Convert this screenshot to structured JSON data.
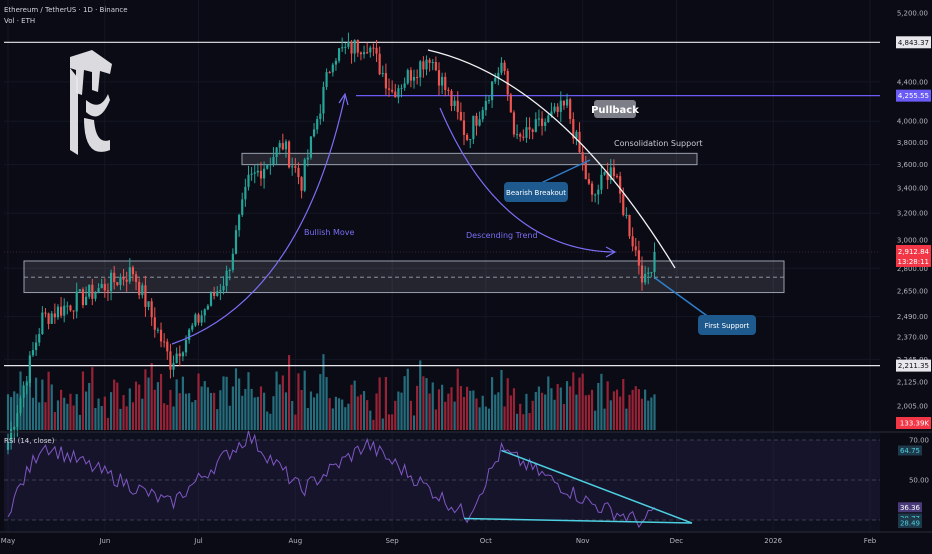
{
  "header": {
    "symbol": "Ethereum / TetherUS · 1D · Binance",
    "volume_label": "Vol · ETH",
    "rsi_label": "RSI (14, close)"
  },
  "colors": {
    "background": "#0a0b14",
    "up": "#26a69a",
    "down": "#ef5350",
    "vol_up": "#2a7f8f",
    "vol_down": "#b2283d",
    "rsi_line": "#7e57c2",
    "trendline": "#4dd0e1",
    "arrow": "#7b6ef6",
    "resistance_line": "#6b5cf5",
    "current_price": "#f23645"
  },
  "chart_data": [
    {
      "type": "candlestick",
      "title": "Ethereum / TetherUS · 1D · Binance",
      "x_labels": [
        "May",
        "Jun",
        "Jul",
        "Aug",
        "Sep",
        "Oct",
        "Nov",
        "Dec",
        "2026",
        "Feb"
      ],
      "x_label_dates": [
        "2025-05-01",
        "2025-06-01",
        "2025-07-01",
        "2025-08-01",
        "2025-09-01",
        "2025-10-01",
        "2025-11-01",
        "2025-12-01",
        "2026-01-01",
        "2026-02-01"
      ],
      "y_scale": "log",
      "y_ticks": [
        5200,
        4843.37,
        4400,
        4255.55,
        4000,
        3800,
        3600,
        3400,
        3200,
        3000,
        2912.84,
        2800,
        2650,
        2490,
        2370,
        2245,
        2211.35,
        2125,
        2005
      ],
      "ylim": [
        1960,
        5300
      ],
      "current_price": 2912.84,
      "countdown": "13:28:11",
      "horizontal_levels": [
        4843.37,
        4255.55,
        2211.35
      ],
      "zones": [
        {
          "name": "Consolidation Support",
          "low": 3600,
          "high": 3700
        },
        {
          "name": "First Support",
          "low": 2640,
          "high": 2850
        }
      ],
      "key_points": [
        {
          "date": "2025-05-01",
          "close": 1840
        },
        {
          "date": "2025-05-12",
          "close": 2480
        },
        {
          "date": "2025-06-10",
          "close": 2780
        },
        {
          "date": "2025-06-22",
          "close": 2230
        },
        {
          "date": "2025-07-10",
          "close": 2750
        },
        {
          "date": "2025-07-17",
          "close": 3450
        },
        {
          "date": "2025-07-28",
          "close": 3780
        },
        {
          "date": "2025-08-03",
          "close": 3450
        },
        {
          "date": "2025-08-13",
          "close": 4700
        },
        {
          "date": "2025-08-24",
          "close": 4843.37
        },
        {
          "date": "2025-09-01",
          "close": 4300
        },
        {
          "date": "2025-09-13",
          "close": 4700
        },
        {
          "date": "2025-09-25",
          "close": 3850
        },
        {
          "date": "2025-10-06",
          "close": 4600
        },
        {
          "date": "2025-10-11",
          "close": 3800
        },
        {
          "date": "2025-10-27",
          "close": 4150
        },
        {
          "date": "2025-11-04",
          "close": 3300
        },
        {
          "date": "2025-11-10",
          "close": 3600
        },
        {
          "date": "2025-11-21",
          "close": 2700
        },
        {
          "date": "2025-11-24",
          "close": 2912.84
        }
      ],
      "volume_last": "133.39K",
      "annotations": [
        "Pullback",
        "Consolidation Support",
        "Bearish Breakout",
        "Bullish Move",
        "Descending Trend",
        "First Support"
      ]
    },
    {
      "type": "line",
      "title": "RSI (14, close)",
      "y_ticks": [
        70,
        50,
        30
      ],
      "ylim": [
        20,
        75
      ],
      "value_tags": [
        64.75,
        36.36,
        30.77,
        28.49
      ],
      "tag_labels": [
        "70.00",
        "64.75",
        "50.00",
        "36.36",
        "30.77",
        "28.49"
      ],
      "key_points": [
        {
          "date": "2025-05-01",
          "value": 35
        },
        {
          "date": "2025-05-12",
          "value": 68
        },
        {
          "date": "2025-06-22",
          "value": 38
        },
        {
          "date": "2025-07-17",
          "value": 72
        },
        {
          "date": "2025-08-03",
          "value": 45
        },
        {
          "date": "2025-08-24",
          "value": 68
        },
        {
          "date": "2025-09-25",
          "value": 32
        },
        {
          "date": "2025-10-06",
          "value": 64.75
        },
        {
          "date": "2025-11-04",
          "value": 38
        },
        {
          "date": "2025-11-21",
          "value": 28.49
        },
        {
          "date": "2025-11-24",
          "value": 36.36
        }
      ],
      "trendlines": [
        {
          "from": {
            "date": "2025-10-06",
            "value": 64.75
          },
          "to": {
            "date": "2025-12-06",
            "value": 28.49
          }
        },
        {
          "from": {
            "date": "2025-09-24",
            "value": 30.77
          },
          "to": {
            "date": "2025-12-06",
            "value": 28.49
          }
        }
      ]
    }
  ]
}
